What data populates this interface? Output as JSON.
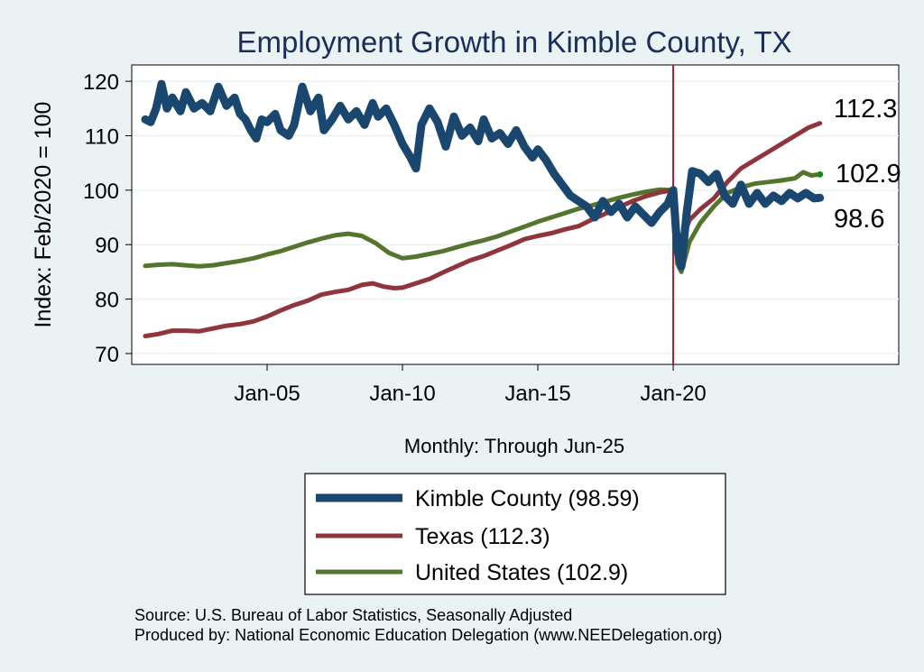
{
  "chart_data": {
    "type": "line",
    "title": "Employment Growth in Kimble  County, TX",
    "ylabel": "Index: Feb/2020 = 100",
    "xlabel": "Monthly: Through Jun-25",
    "ylim": [
      68,
      123
    ],
    "yticks": [
      70,
      80,
      90,
      100,
      110,
      120
    ],
    "xlim": [
      2000.0,
      2028.33
    ],
    "xticks": [
      {
        "label": "Jan-05",
        "value": 2005.0
      },
      {
        "label": "Jan-10",
        "value": 2010.0
      },
      {
        "label": "Jan-15",
        "value": 2015.0
      },
      {
        "label": "Jan-20",
        "value": 2020.0
      }
    ],
    "vline": {
      "x": 2020.0,
      "color": "#a0213a"
    },
    "series": [
      {
        "name": "Kimble  County",
        "legend": "Kimble  County (98.59)",
        "end_label": "98.6",
        "color": "#1a476f",
        "width": 9,
        "points": [
          [
            2000.5,
            113
          ],
          [
            2000.7,
            112.5
          ],
          [
            2000.9,
            115
          ],
          [
            2001.1,
            119.5
          ],
          [
            2001.3,
            115
          ],
          [
            2001.5,
            117
          ],
          [
            2001.8,
            114.5
          ],
          [
            2002.0,
            118
          ],
          [
            2002.3,
            115
          ],
          [
            2002.6,
            116
          ],
          [
            2002.9,
            114.5
          ],
          [
            2003.2,
            119
          ],
          [
            2003.5,
            115.5
          ],
          [
            2003.8,
            117
          ],
          [
            2004.0,
            114
          ],
          [
            2004.2,
            113
          ],
          [
            2004.4,
            111
          ],
          [
            2004.6,
            109.5
          ],
          [
            2004.8,
            113
          ],
          [
            2005.0,
            112.5
          ],
          [
            2005.3,
            114
          ],
          [
            2005.5,
            111
          ],
          [
            2005.8,
            110
          ],
          [
            2006.0,
            112
          ],
          [
            2006.3,
            119
          ],
          [
            2006.6,
            114.5
          ],
          [
            2006.9,
            117
          ],
          [
            2007.1,
            111
          ],
          [
            2007.4,
            113
          ],
          [
            2007.7,
            115.5
          ],
          [
            2008.0,
            113
          ],
          [
            2008.3,
            114.5
          ],
          [
            2008.6,
            112
          ],
          [
            2008.9,
            116
          ],
          [
            2009.1,
            113.5
          ],
          [
            2009.4,
            115
          ],
          [
            2009.7,
            112
          ],
          [
            2010.0,
            108.5
          ],
          [
            2010.3,
            106
          ],
          [
            2010.5,
            104
          ],
          [
            2010.7,
            112
          ],
          [
            2011.0,
            115
          ],
          [
            2011.3,
            112.5
          ],
          [
            2011.6,
            108
          ],
          [
            2011.9,
            113.5
          ],
          [
            2012.2,
            110
          ],
          [
            2012.5,
            111.5
          ],
          [
            2012.8,
            109
          ],
          [
            2013.0,
            113
          ],
          [
            2013.3,
            109.5
          ],
          [
            2013.6,
            110.5
          ],
          [
            2013.9,
            108.5
          ],
          [
            2014.2,
            111
          ],
          [
            2014.5,
            108
          ],
          [
            2014.8,
            106
          ],
          [
            2015.0,
            107.5
          ],
          [
            2015.3,
            105.5
          ],
          [
            2015.6,
            103
          ],
          [
            2015.9,
            101
          ],
          [
            2016.2,
            99
          ],
          [
            2016.5,
            98
          ],
          [
            2016.8,
            97
          ],
          [
            2017.1,
            95
          ],
          [
            2017.4,
            98
          ],
          [
            2017.7,
            96
          ],
          [
            2018.0,
            97.5
          ],
          [
            2018.3,
            95
          ],
          [
            2018.6,
            97
          ],
          [
            2018.9,
            95.5
          ],
          [
            2019.2,
            94
          ],
          [
            2019.5,
            96
          ],
          [
            2019.8,
            97.5
          ],
          [
            2020.0,
            100
          ],
          [
            2020.15,
            89
          ],
          [
            2020.3,
            86
          ],
          [
            2020.5,
            96
          ],
          [
            2020.7,
            103.5
          ],
          [
            2021.0,
            103
          ],
          [
            2021.3,
            101.5
          ],
          [
            2021.6,
            103
          ],
          [
            2021.9,
            99
          ],
          [
            2022.2,
            97.5
          ],
          [
            2022.5,
            101
          ],
          [
            2022.8,
            97.5
          ],
          [
            2023.1,
            99.5
          ],
          [
            2023.4,
            97.5
          ],
          [
            2023.7,
            99
          ],
          [
            2024.0,
            98
          ],
          [
            2024.3,
            99.5
          ],
          [
            2024.6,
            98.5
          ],
          [
            2024.9,
            99.5
          ],
          [
            2025.2,
            98.5
          ],
          [
            2025.42,
            98.59
          ]
        ]
      },
      {
        "name": "Texas",
        "legend": "Texas (112.3)",
        "end_label": "112.3",
        "color": "#90353b",
        "width": 5,
        "points": [
          [
            2000.5,
            73.2
          ],
          [
            2001.0,
            73.6
          ],
          [
            2001.5,
            74.2
          ],
          [
            2002.0,
            74.2
          ],
          [
            2002.5,
            74.1
          ],
          [
            2003.0,
            74.6
          ],
          [
            2003.5,
            75.1
          ],
          [
            2004.0,
            75.4
          ],
          [
            2004.5,
            75.9
          ],
          [
            2005.0,
            76.8
          ],
          [
            2005.5,
            77.9
          ],
          [
            2006.0,
            78.9
          ],
          [
            2006.5,
            79.7
          ],
          [
            2007.0,
            80.8
          ],
          [
            2007.5,
            81.3
          ],
          [
            2008.0,
            81.7
          ],
          [
            2008.5,
            82.6
          ],
          [
            2008.9,
            82.9
          ],
          [
            2009.3,
            82.3
          ],
          [
            2009.7,
            82.0
          ],
          [
            2010.0,
            82.1
          ],
          [
            2010.5,
            82.9
          ],
          [
            2011.0,
            83.7
          ],
          [
            2011.5,
            84.9
          ],
          [
            2012.0,
            86.0
          ],
          [
            2012.5,
            87.1
          ],
          [
            2013.0,
            87.9
          ],
          [
            2013.5,
            88.9
          ],
          [
            2014.0,
            89.9
          ],
          [
            2014.5,
            91.0
          ],
          [
            2015.0,
            91.6
          ],
          [
            2015.5,
            92.1
          ],
          [
            2016.0,
            92.8
          ],
          [
            2016.5,
            93.4
          ],
          [
            2017.0,
            94.6
          ],
          [
            2017.5,
            95.7
          ],
          [
            2018.0,
            96.9
          ],
          [
            2018.5,
            98.0
          ],
          [
            2019.0,
            98.9
          ],
          [
            2019.5,
            99.6
          ],
          [
            2020.0,
            100
          ],
          [
            2020.15,
            92.5
          ],
          [
            2020.3,
            90.5
          ],
          [
            2020.6,
            94.5
          ],
          [
            2021.0,
            96.5
          ],
          [
            2021.5,
            98.5
          ],
          [
            2022.0,
            101.5
          ],
          [
            2022.5,
            104.0
          ],
          [
            2023.0,
            105.5
          ],
          [
            2023.5,
            107.0
          ],
          [
            2024.0,
            108.5
          ],
          [
            2024.5,
            110.0
          ],
          [
            2025.0,
            111.5
          ],
          [
            2025.42,
            112.3
          ]
        ]
      },
      {
        "name": "United States",
        "legend": "United States (102.9)",
        "end_label": "102.9",
        "color": "#55752f",
        "width": 5,
        "points": [
          [
            2000.5,
            86.1
          ],
          [
            2001.0,
            86.3
          ],
          [
            2001.5,
            86.4
          ],
          [
            2002.0,
            86.2
          ],
          [
            2002.5,
            86.0
          ],
          [
            2003.0,
            86.2
          ],
          [
            2003.5,
            86.6
          ],
          [
            2004.0,
            87.0
          ],
          [
            2004.5,
            87.5
          ],
          [
            2005.0,
            88.2
          ],
          [
            2005.5,
            88.8
          ],
          [
            2006.0,
            89.6
          ],
          [
            2006.5,
            90.4
          ],
          [
            2007.0,
            91.1
          ],
          [
            2007.5,
            91.7
          ],
          [
            2008.0,
            92.0
          ],
          [
            2008.5,
            91.6
          ],
          [
            2009.0,
            90.3
          ],
          [
            2009.5,
            88.5
          ],
          [
            2010.0,
            87.5
          ],
          [
            2010.5,
            87.8
          ],
          [
            2011.0,
            88.3
          ],
          [
            2011.5,
            88.8
          ],
          [
            2012.0,
            89.5
          ],
          [
            2012.5,
            90.2
          ],
          [
            2013.0,
            90.8
          ],
          [
            2013.5,
            91.5
          ],
          [
            2014.0,
            92.4
          ],
          [
            2014.5,
            93.3
          ],
          [
            2015.0,
            94.2
          ],
          [
            2015.5,
            95.0
          ],
          [
            2016.0,
            95.8
          ],
          [
            2016.5,
            96.6
          ],
          [
            2017.0,
            97.2
          ],
          [
            2017.5,
            97.9
          ],
          [
            2018.0,
            98.6
          ],
          [
            2018.5,
            99.2
          ],
          [
            2019.0,
            99.7
          ],
          [
            2019.5,
            100.1
          ],
          [
            2020.0,
            100
          ],
          [
            2020.15,
            86.5
          ],
          [
            2020.3,
            85.0
          ],
          [
            2020.6,
            90.5
          ],
          [
            2021.0,
            94.0
          ],
          [
            2021.5,
            97.0
          ],
          [
            2022.0,
            99.5
          ],
          [
            2022.5,
            100.5
          ],
          [
            2023.0,
            101.2
          ],
          [
            2023.5,
            101.5
          ],
          [
            2024.0,
            101.8
          ],
          [
            2024.5,
            102.2
          ],
          [
            2024.8,
            103.3
          ],
          [
            2025.1,
            102.7
          ],
          [
            2025.42,
            102.9
          ]
        ]
      }
    ],
    "legend_position": "bottom",
    "source_lines": [
      "Source: U.S. Bureau of Labor Statistics, Seasonally Adjusted",
      "Produced by: National Economic Education Delegation (www.NEEDelegation.org)"
    ]
  }
}
